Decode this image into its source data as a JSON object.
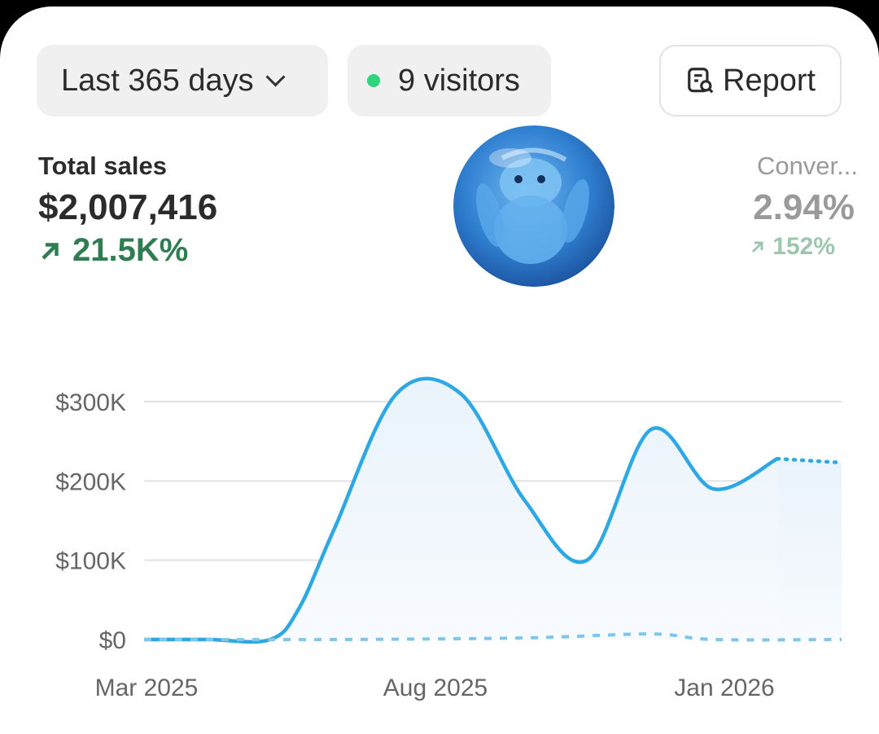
{
  "filters": {
    "range_label": "Last 365 days",
    "visitors_label": "9 visitors",
    "report_label": "Report"
  },
  "metrics": {
    "total_sales": {
      "label": "Total sales",
      "value": "$2,007,416",
      "change": "21.5K%"
    },
    "conversion": {
      "label": "Conver...",
      "value": "2.94%",
      "change": "152%"
    }
  },
  "colors": {
    "accent_line": "#2ea8e5",
    "live_dot": "#2fd47b",
    "positive": "#2f7d51"
  },
  "icons": [
    "chevron-down-icon",
    "live-dot-icon",
    "report-search-icon",
    "arrow-up-right-icon",
    "avatar-image"
  ],
  "chart_data": {
    "type": "line",
    "x_ticks": [
      "Mar 2025",
      "Aug 2025",
      "Jan 2026"
    ],
    "y_ticks": [
      "$0",
      "$100K",
      "$200K",
      "$300K"
    ],
    "ylim": [
      0,
      300000
    ],
    "series": [
      {
        "style": "solid",
        "points": [
          [
            "2025-03",
            0
          ],
          [
            "2025-04",
            0
          ],
          [
            "2025-05",
            0
          ],
          [
            "2025-05-15",
            40000
          ],
          [
            "2025-06",
            140000
          ],
          [
            "2025-07",
            310000
          ],
          [
            "2025-08",
            310000
          ],
          [
            "2025-09",
            175000
          ],
          [
            "2025-10",
            100000
          ],
          [
            "2025-11",
            265000
          ],
          [
            "2025-12",
            190000
          ],
          [
            "2026-01",
            228000
          ]
        ]
      },
      {
        "style": "dotted",
        "points": [
          [
            "2026-01",
            228000
          ],
          [
            "2026-02",
            223000
          ]
        ]
      },
      {
        "style": "dashed",
        "points": [
          [
            "2025-03",
            0
          ],
          [
            "2025-06",
            0
          ],
          [
            "2025-09",
            2000
          ],
          [
            "2025-11",
            7000
          ],
          [
            "2025-12",
            0
          ],
          [
            "2026-02",
            0
          ]
        ]
      }
    ]
  }
}
